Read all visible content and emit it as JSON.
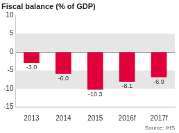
{
  "chart_data": {
    "type": "bar",
    "title": "Fiscal balance (% of GDP)",
    "source": "Source: IHS",
    "categories": [
      "2013",
      "2014",
      "2015",
      "2016f",
      "2017f"
    ],
    "values": [
      -3.0,
      -6.0,
      -10.3,
      -8.1,
      -6.9
    ],
    "value_labels": [
      "-3.0",
      "-6.0",
      "-10.3",
      "-8.1",
      "-6.9"
    ],
    "color": "#e2003a",
    "ylim": [
      -15,
      10
    ],
    "yticks": [
      -15,
      -10,
      -5,
      0,
      5,
      10
    ],
    "grid": true,
    "data_labels": true
  }
}
